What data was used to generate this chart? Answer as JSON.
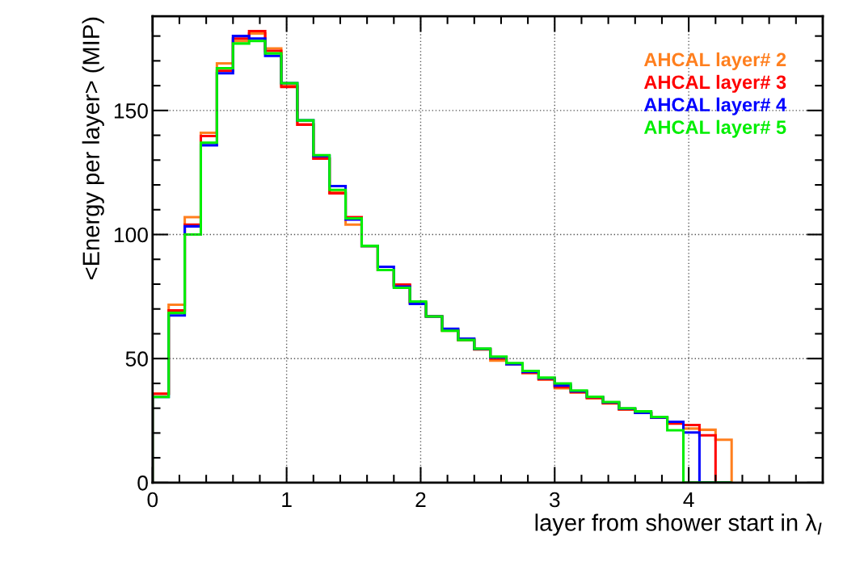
{
  "chart_data": {
    "type": "histogram",
    "xlabel": "layer from shower start in λ$_{I}$",
    "ylabel": "<Energy per layer> (MIP)",
    "bins": [
      0,
      0.12,
      0.24,
      0.36,
      0.48,
      0.6,
      0.72,
      0.84,
      0.96,
      1.08,
      1.2,
      1.32,
      1.44,
      1.56,
      1.68,
      1.8,
      1.92,
      2.04,
      2.16,
      2.28,
      2.4,
      2.52,
      2.64,
      2.76,
      2.88,
      3.0,
      3.12,
      3.24,
      3.36,
      3.48,
      3.6,
      3.72,
      3.84,
      3.96,
      4.08,
      4.2,
      4.32
    ],
    "series": [
      {
        "name": "AHCAL layer# 2",
        "color": "#ff7f1e",
        "values": [
          35.8,
          71.7,
          107,
          141,
          169,
          178,
          181,
          175,
          160,
          144.3,
          130.6,
          117,
          104,
          95.4,
          85.7,
          79.5,
          72.5,
          67,
          61.2,
          57.5,
          53.7,
          49.2,
          47.8,
          44.1,
          41.5,
          38,
          36.3,
          34,
          31.9,
          29.4,
          28.2,
          26.2,
          24.2,
          21.8,
          21.3,
          17.3
        ]
      },
      {
        "name": "AHCAL layer# 3",
        "color": "#ff0000",
        "values": [
          35.8,
          69.4,
          104,
          139.7,
          166,
          179,
          182,
          174,
          159.5,
          144.3,
          130.6,
          116.6,
          107,
          95.4,
          85.7,
          79.8,
          72.5,
          67,
          61.5,
          57.5,
          53.7,
          50,
          47.8,
          44.3,
          41.7,
          38.5,
          36.5,
          34.2,
          32,
          29.6,
          28.2,
          26.2,
          23.8,
          23.2,
          19.1,
          0
        ]
      },
      {
        "name": "AHCAL layer# 4",
        "color": "#0000ff",
        "values": [
          34.5,
          67.4,
          103.3,
          136,
          165,
          180,
          179,
          172,
          161,
          146,
          131.6,
          119.5,
          106,
          95.4,
          87,
          79,
          72,
          67,
          62,
          58,
          53.9,
          50.5,
          47.7,
          44.6,
          42,
          39.2,
          36.8,
          34.5,
          32.3,
          29.8,
          28.1,
          26.2,
          24.5,
          20.2,
          0,
          0
        ]
      },
      {
        "name": "AHCAL layer# 5",
        "color": "#00ee00",
        "values": [
          34.5,
          68.4,
          100,
          137,
          167,
          177,
          178,
          173,
          161,
          146,
          132,
          118,
          106.5,
          95.4,
          85.7,
          78.5,
          73,
          67,
          61.2,
          57.5,
          54,
          50.8,
          48.2,
          45,
          42.3,
          40,
          37.1,
          34.6,
          32.5,
          30,
          28.7,
          26.5,
          21.1,
          0,
          0,
          0
        ]
      }
    ],
    "xlim": [
      0,
      5
    ],
    "ylim": [
      0,
      188
    ],
    "xticks": [
      0,
      1,
      2,
      3,
      4
    ],
    "yticks": [
      0,
      50,
      100,
      150
    ],
    "grid": true,
    "legend": "top right"
  }
}
